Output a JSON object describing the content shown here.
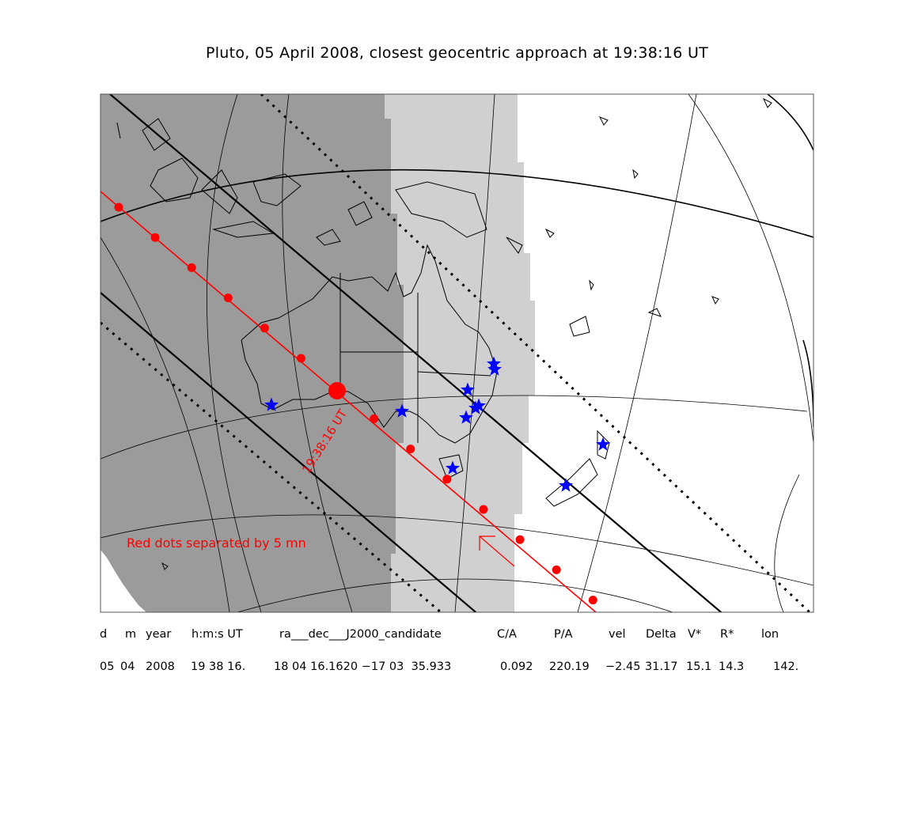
{
  "title": "Pluto, 05 April 2008, closest geocentric approach at 19:38:16 UT",
  "map": {
    "timestamp_label": "19:38:16 UT",
    "note": "Red dots separated by 5 mn",
    "colors": {
      "night": "#9b9b9b",
      "twilight": "#d0d0d0",
      "day": "#ffffff",
      "path": "#ff0000",
      "limits": "#000000",
      "observers": "#0000ff"
    },
    "observer_icon": "star-icon",
    "dot_interval_minutes": 5
  },
  "table": {
    "headers": [
      "d",
      "m",
      "year",
      "h:m:s UT",
      "ra___dec___J2000_candidate",
      "C/A",
      "P/A",
      "vel",
      "Delta",
      "V*",
      "R*",
      "lon"
    ],
    "values": [
      "05",
      "04",
      "2008",
      "19 38 16.",
      "18 04 16.1620 −17 03  35.933",
      "0.092",
      "220.19",
      "−2.45",
      "31.17",
      "15.1",
      "14.3",
      "142."
    ]
  }
}
